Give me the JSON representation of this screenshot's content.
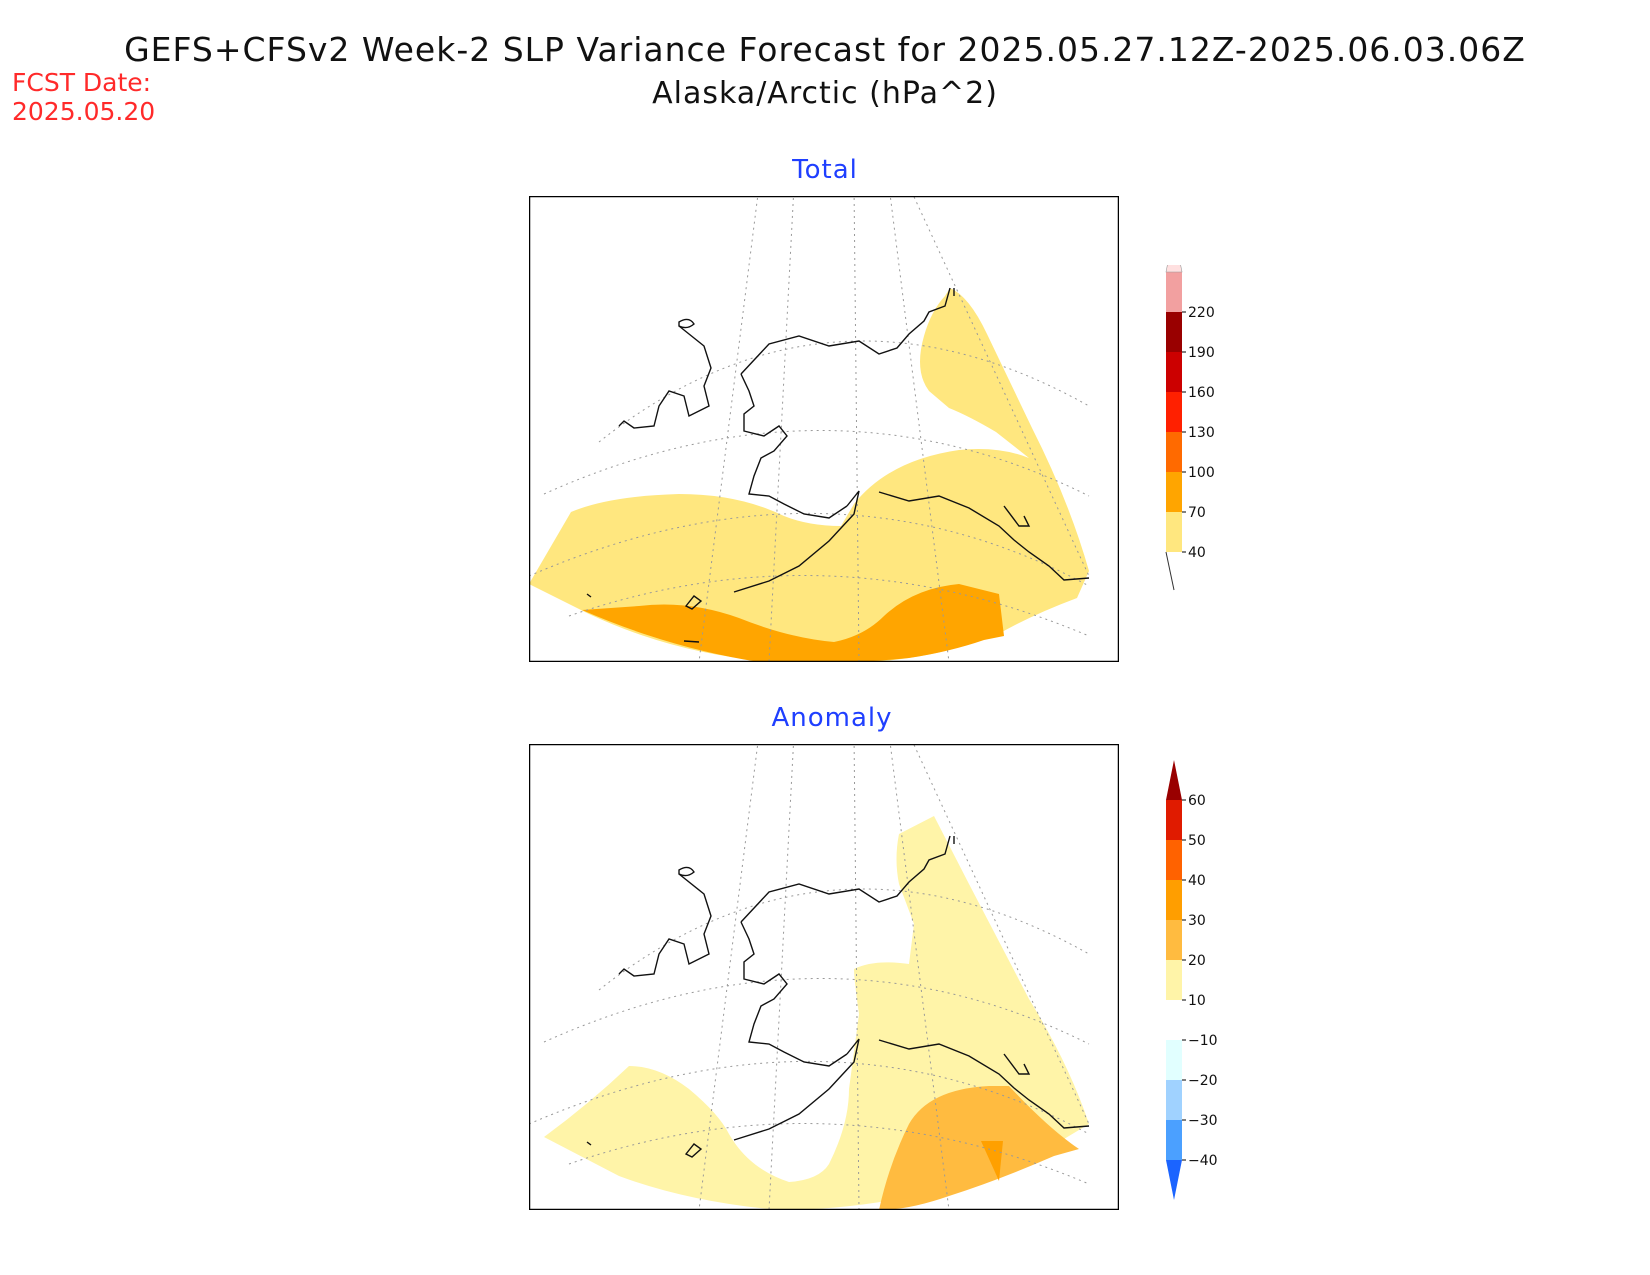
{
  "header": {
    "title": "GEFS+CFSv2 Week-2 SLP Variance Forecast for 2025.05.27.12Z-2025.06.03.06Z",
    "subtitle": "Alaska/Arctic (hPa^2)",
    "fcst_label": "FCST Date:",
    "fcst_date": "2025.05.20"
  },
  "panels": {
    "total": {
      "title": "Total",
      "colorbar": {
        "labels": [
          "40",
          "70",
          "100",
          "130",
          "160",
          "190",
          "220"
        ],
        "colors": [
          "#ffe77f",
          "#ffa500",
          "#ff6a00",
          "#ff2000",
          "#cc0000",
          "#990000",
          "#f2a0a0",
          "#ffe0e0"
        ]
      }
    },
    "anomaly": {
      "title": "Anomaly",
      "colorbar": {
        "labels": [
          "60",
          "50",
          "40",
          "30",
          "20",
          "10",
          "−10",
          "−20",
          "−30",
          "−40"
        ],
        "colors": [
          "#990000",
          "#e01b00",
          "#ff6200",
          "#ff9e00",
          "#ffbb40",
          "#fff4a8",
          "#ffffff",
          "#e1ffff",
          "#a0d2ff",
          "#4ba0ff",
          "#1b64ff"
        ]
      }
    }
  },
  "colors": {
    "light_yellow": "#ffe77f",
    "orange": "#ffa500",
    "pale_yellow": "#fff4a8",
    "light_orange": "#ffbb40",
    "title_blue": "#1f3fff",
    "fcst_red": "#ff2a2a"
  }
}
